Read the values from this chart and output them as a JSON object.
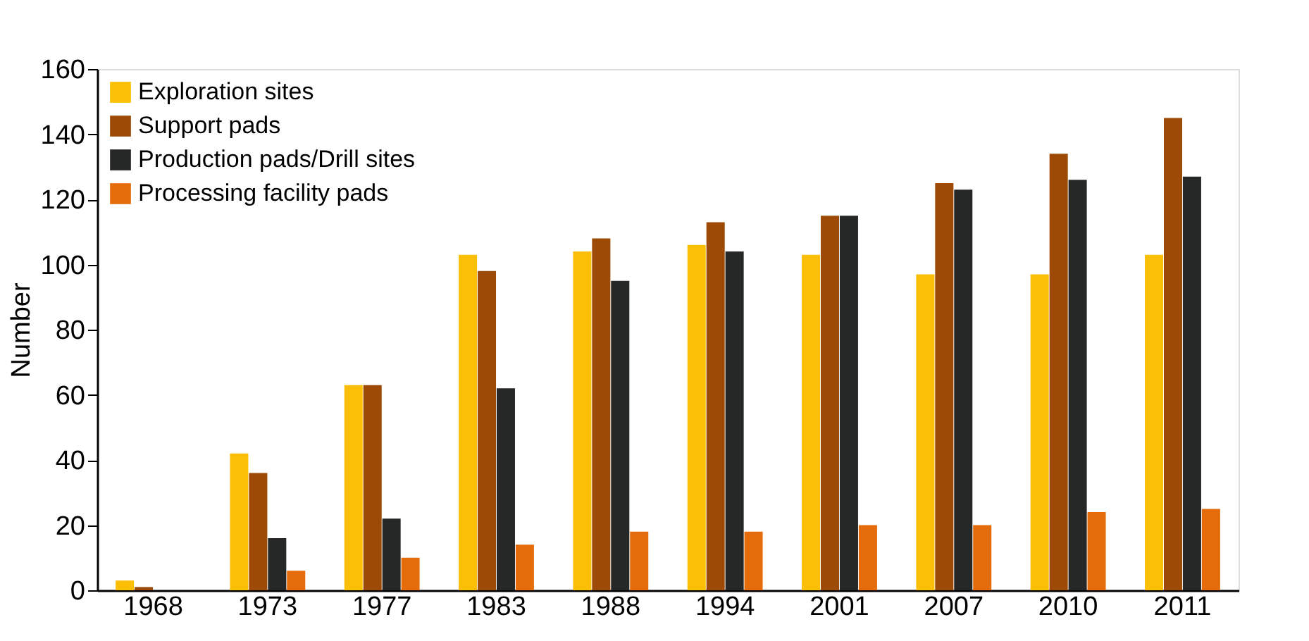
{
  "chart_data": {
    "type": "bar",
    "ylabel": "Number",
    "categories": [
      "1968",
      "1973",
      "1977",
      "1983",
      "1988",
      "1994",
      "2001",
      "2007",
      "2010",
      "2011"
    ],
    "series": [
      {
        "name": "Exploration sites",
        "color": "#fcbf07",
        "values": [
          3,
          42,
          63,
          103,
          104,
          106,
          103,
          97,
          97,
          103
        ]
      },
      {
        "name": "Support pads",
        "color": "#9c4a06",
        "values": [
          1,
          36,
          63,
          98,
          108,
          113,
          115,
          125,
          134,
          145
        ]
      },
      {
        "name": "Production pads/Drill sites",
        "color": "#262828",
        "values": [
          0,
          16,
          22,
          62,
          95,
          104,
          115,
          123,
          126,
          127
        ]
      },
      {
        "name": "Processing facility pads",
        "color": "#e46c0a",
        "values": [
          0,
          6,
          10,
          14,
          18,
          18,
          20,
          20,
          24,
          25
        ]
      }
    ],
    "ylim": [
      0,
      160
    ],
    "yticks": [
      0,
      20,
      40,
      60,
      80,
      100,
      120,
      140,
      160
    ],
    "grid": false,
    "legend": "top left"
  }
}
